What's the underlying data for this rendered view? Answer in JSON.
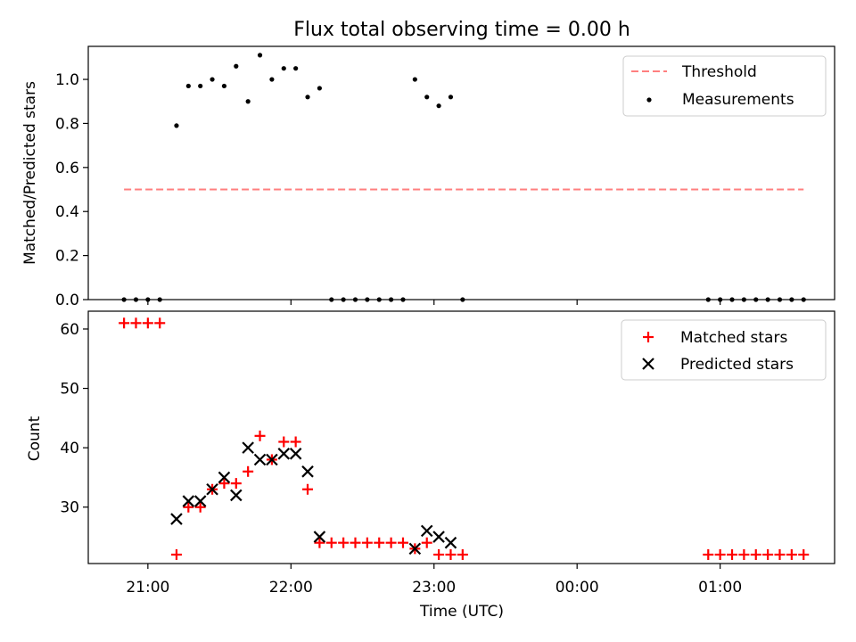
{
  "title": "Flux total observing time = 0.00 h",
  "colors": {
    "threshold": "#ff7f7f",
    "measurement": "#000000",
    "matched": "#ff0000",
    "predicted": "#000000"
  },
  "chart_data": [
    {
      "type": "scatter",
      "ylabel": "Matched/Predicted stars",
      "ylim": [
        0,
        1.15
      ],
      "yticks": [
        "0.0",
        "0.2",
        "0.4",
        "0.6",
        "0.8",
        "1.0"
      ],
      "xlim": [
        "20:35",
        "01:48"
      ],
      "xtick_labels_shown": false,
      "legend": {
        "placement": "top-right",
        "entries": [
          "Threshold",
          "Measurements"
        ]
      },
      "series": [
        {
          "name": "Threshold",
          "kind": "dashed-line",
          "x": [
            "20:50",
            "01:35"
          ],
          "y": [
            0.5,
            0.5
          ]
        },
        {
          "name": "Measurements",
          "kind": "dots",
          "x": [
            "20:50",
            "20:55",
            "21:00",
            "21:05",
            "21:12",
            "21:17",
            "21:22",
            "21:27",
            "21:32",
            "21:37",
            "21:42",
            "21:47",
            "21:52",
            "21:57",
            "22:02",
            "22:07",
            "22:12",
            "22:17",
            "22:22",
            "22:27",
            "22:32",
            "22:37",
            "22:42",
            "22:47",
            "22:52",
            "22:57",
            "23:02",
            "23:07",
            "23:12",
            "00:55",
            "01:00",
            "01:05",
            "01:10",
            "01:15",
            "01:20",
            "01:25",
            "01:30",
            "01:35"
          ],
          "y": [
            0,
            0,
            0,
            0,
            0.79,
            0.97,
            0.97,
            1.0,
            0.97,
            1.06,
            0.9,
            1.11,
            1.0,
            1.05,
            1.05,
            0.92,
            0.96,
            0,
            0,
            0,
            0,
            0,
            0,
            0,
            1.0,
            0.92,
            0.88,
            0.92,
            0,
            0,
            0,
            0,
            0,
            0,
            0,
            0,
            0,
            0
          ]
        }
      ]
    },
    {
      "type": "scatter",
      "xlabel": "Time (UTC)",
      "ylabel": "Count",
      "ylim": [
        20.5,
        63
      ],
      "yticks": [
        "30",
        "40",
        "50",
        "60"
      ],
      "xlim": [
        "20:35",
        "01:48"
      ],
      "xticks": [
        "21:00",
        "22:00",
        "23:00",
        "00:00",
        "01:00"
      ],
      "legend": {
        "placement": "top-right",
        "entries": [
          "Matched stars",
          "Predicted stars"
        ]
      },
      "series": [
        {
          "name": "Matched stars",
          "marker": "+",
          "x": [
            "20:50",
            "20:55",
            "21:00",
            "21:05",
            "21:12",
            "21:17",
            "21:22",
            "21:27",
            "21:32",
            "21:37",
            "21:42",
            "21:47",
            "21:52",
            "21:57",
            "22:02",
            "22:07",
            "22:12",
            "22:17",
            "22:22",
            "22:27",
            "22:32",
            "22:37",
            "22:42",
            "22:47",
            "22:52",
            "22:57",
            "23:02",
            "23:07",
            "23:12",
            "00:55",
            "01:00",
            "01:05",
            "01:10",
            "01:15",
            "01:20",
            "01:25",
            "01:30",
            "01:35"
          ],
          "y": [
            61,
            61,
            61,
            61,
            22,
            30,
            30,
            33,
            34,
            34,
            36,
            42,
            38,
            41,
            41,
            33,
            24,
            24,
            24,
            24,
            24,
            24,
            24,
            24,
            23,
            24,
            22,
            22,
            22,
            22,
            22,
            22,
            22,
            22,
            22,
            22,
            22,
            22
          ]
        },
        {
          "name": "Predicted stars",
          "marker": "x",
          "x": [
            "21:12",
            "21:17",
            "21:22",
            "21:27",
            "21:32",
            "21:37",
            "21:42",
            "21:47",
            "21:52",
            "21:57",
            "22:02",
            "22:07",
            "22:12",
            "22:52",
            "22:57",
            "23:02",
            "23:07"
          ],
          "y": [
            28,
            31,
            31,
            33,
            35,
            32,
            40,
            38,
            38,
            39,
            39,
            36,
            25,
            23,
            26,
            25,
            24
          ]
        }
      ]
    }
  ]
}
